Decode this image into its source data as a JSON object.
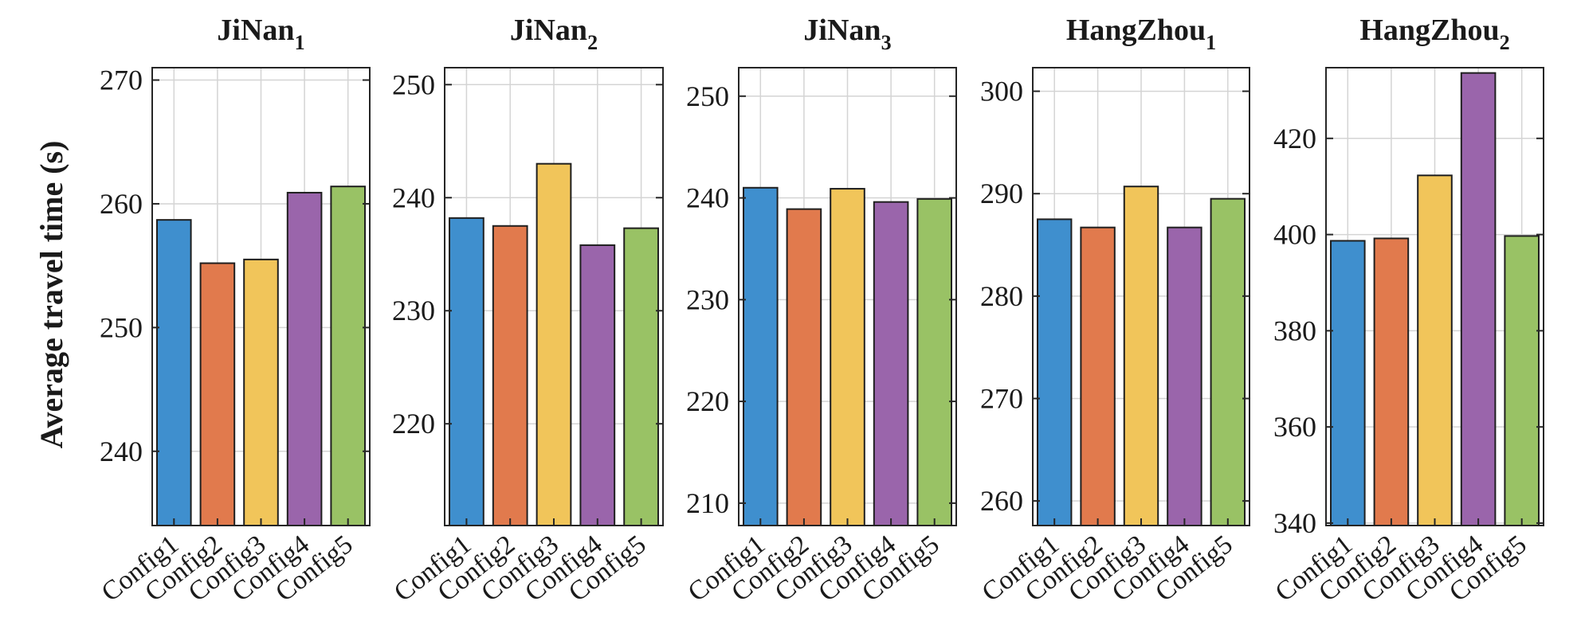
{
  "ylabel": "Average travel time (s)",
  "colors": [
    "#3f8fce",
    "#e17a4d",
    "#f1c55a",
    "#9a65ab",
    "#99c265"
  ],
  "chart_data": [
    {
      "type": "bar",
      "title": "JiNan",
      "title_sub": "1",
      "categories": [
        "Config1",
        "Config2",
        "Config3",
        "Config4",
        "Config5"
      ],
      "values": [
        258.7,
        255.2,
        255.5,
        260.9,
        261.4
      ],
      "ylim": [
        234,
        271
      ],
      "yticks": [
        240,
        250,
        260,
        270
      ],
      "grid": true
    },
    {
      "type": "bar",
      "title": "JiNan",
      "title_sub": "2",
      "categories": [
        "Config1",
        "Config2",
        "Config3",
        "Config4",
        "Config5"
      ],
      "values": [
        238.2,
        237.5,
        243.0,
        235.8,
        237.3
      ],
      "ylim": [
        211,
        251.5
      ],
      "yticks": [
        220,
        230,
        240,
        250
      ],
      "grid": true
    },
    {
      "type": "bar",
      "title": "JiNan",
      "title_sub": "3",
      "categories": [
        "Config1",
        "Config2",
        "Config3",
        "Config4",
        "Config5"
      ],
      "values": [
        241.0,
        238.9,
        240.9,
        239.6,
        239.9
      ],
      "ylim": [
        207.8,
        252.8
      ],
      "yticks": [
        210,
        220,
        230,
        240,
        250
      ],
      "grid": true
    },
    {
      "type": "bar",
      "title": "HangZhou",
      "title_sub": "1",
      "categories": [
        "Config1",
        "Config2",
        "Config3",
        "Config4",
        "Config5"
      ],
      "values": [
        287.5,
        286.7,
        290.7,
        286.7,
        289.5
      ],
      "ylim": [
        257.6,
        302.3
      ],
      "yticks": [
        260,
        270,
        280,
        290,
        300
      ],
      "grid": true
    },
    {
      "type": "bar",
      "title": "HangZhou",
      "title_sub": "2",
      "categories": [
        "Config1",
        "Config2",
        "Config3",
        "Config4",
        "Config5"
      ],
      "values": [
        398.7,
        399.2,
        412.3,
        433.6,
        399.7
      ],
      "ylim": [
        339.5,
        434.7
      ],
      "yticks": [
        340,
        360,
        380,
        400,
        420
      ],
      "grid": true
    }
  ]
}
